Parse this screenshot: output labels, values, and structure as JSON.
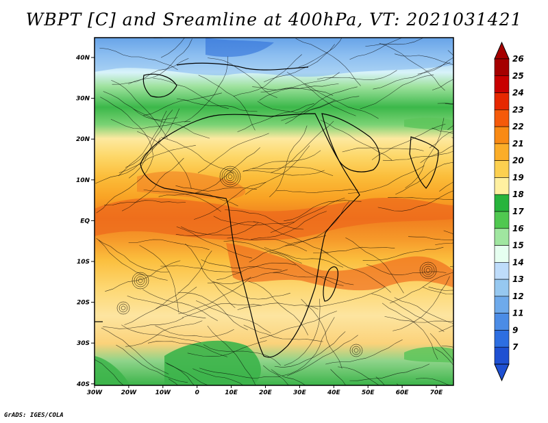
{
  "title": "WBPT [C] and Sreamline at 400hPa, VT: 2021031421",
  "credit": "GrADS: IGES/COLA",
  "map": {
    "lat_ticks": [
      "40N",
      "30N",
      "20N",
      "10N",
      "EQ",
      "10S",
      "20S",
      "30S",
      "40S"
    ],
    "lon_ticks": [
      "30W",
      "20W",
      "10W",
      "0",
      "10E",
      "20E",
      "30E",
      "40E",
      "50E",
      "60E",
      "70E"
    ],
    "extent": {
      "lon": [
        -30,
        75
      ],
      "lat": [
        -40,
        45
      ]
    }
  },
  "colorbar": {
    "labels": [
      "26",
      "25",
      "24",
      "23",
      "22",
      "21",
      "20",
      "19",
      "18",
      "17",
      "16",
      "15",
      "14",
      "13",
      "12",
      "11",
      "9",
      "7"
    ],
    "colors": [
      "#a50000",
      "#c80000",
      "#e62800",
      "#f55a0a",
      "#f98a14",
      "#fbad28",
      "#fcd050",
      "#fff0a0",
      "#28b43c",
      "#50c850",
      "#a0e6a0",
      "#e6fff0",
      "#bedcfa",
      "#96c8f0",
      "#6eaaeb",
      "#4b8ce6",
      "#2d6ee1",
      "#1e50d2"
    ]
  }
}
